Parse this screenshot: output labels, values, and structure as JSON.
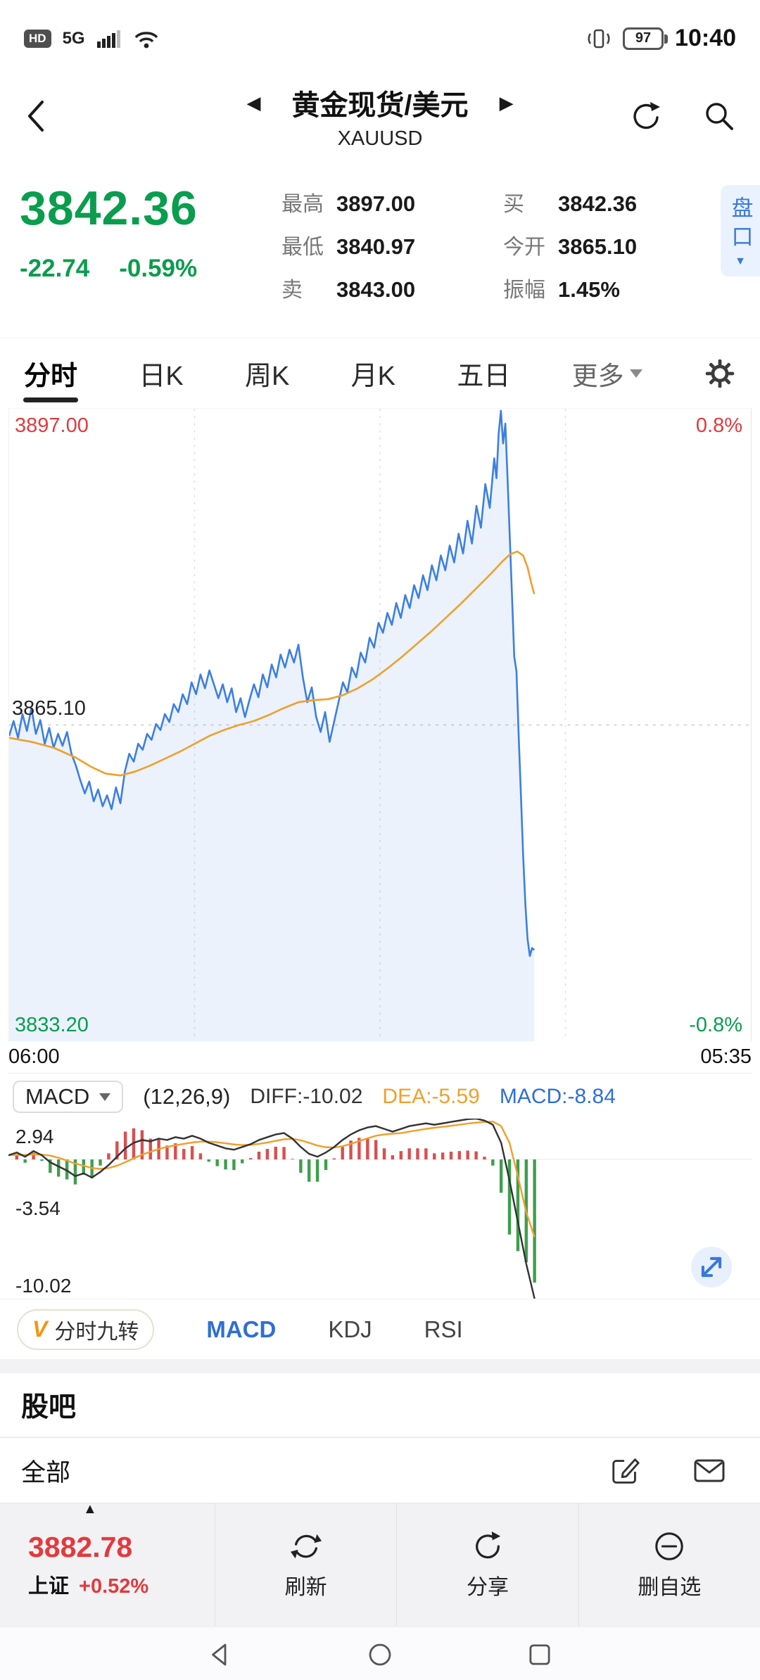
{
  "status_bar": {
    "carrier_badge": "HD",
    "network": "5G",
    "battery_level": "97",
    "time": "10:40"
  },
  "header": {
    "title": "黄金现货/美元",
    "symbol": "XAUUSD"
  },
  "quote": {
    "price": "3842.36",
    "change": "-22.74",
    "change_pct": "-0.59%",
    "stats_left": [
      {
        "label": "最高",
        "value": "3897.00"
      },
      {
        "label": "最低",
        "value": "3840.97"
      },
      {
        "label": "卖",
        "value": "3843.00"
      }
    ],
    "stats_right": [
      {
        "label": "买",
        "value": "3842.36"
      },
      {
        "label": "今开",
        "value": "3865.10"
      },
      {
        "label": "振幅",
        "value": "1.45%"
      }
    ],
    "depth_button": "盘口"
  },
  "tabs": {
    "items": [
      "分时",
      "日K",
      "周K",
      "月K",
      "五日"
    ],
    "more_label": "更多",
    "active": "分时"
  },
  "chart_data": [
    {
      "type": "line",
      "name": "分时走势",
      "symbol": "XAUUSD",
      "ylim": [
        3833.2,
        3897.0
      ],
      "baseline": 3865.1,
      "x_axis": {
        "start": "06:00",
        "end": "05:35"
      },
      "axis_labels": {
        "high": "3897.00",
        "high_pct": "0.8%",
        "mid": "3865.10",
        "low": "3833.20",
        "low_pct": "-0.8%"
      },
      "grid": {
        "v_lines_pct": [
          25,
          50,
          75
        ],
        "h_line_value": 3865.1
      },
      "series": [
        {
          "name": "price",
          "color": "#3d7fe0",
          "area_fill": "rgba(61,127,224,0.10)",
          "points": [
            [
              0,
              3864
            ],
            [
              0.6,
              3865.5
            ],
            [
              1.2,
              3863.8
            ],
            [
              1.8,
              3866.2
            ],
            [
              2.4,
              3864.5
            ],
            [
              3,
              3866.8
            ],
            [
              3.6,
              3864.2
            ],
            [
              4.2,
              3865.6
            ],
            [
              4.8,
              3863.2
            ],
            [
              5.4,
              3864.8
            ],
            [
              6,
              3862.8
            ],
            [
              6.6,
              3864.2
            ],
            [
              7.2,
              3863
            ],
            [
              7.8,
              3864.4
            ],
            [
              8.4,
              3862.2
            ],
            [
              9,
              3861
            ],
            [
              9.6,
              3859.5
            ],
            [
              10.2,
              3858.2
            ],
            [
              10.8,
              3859.4
            ],
            [
              11.4,
              3857.4
            ],
            [
              12,
              3858.6
            ],
            [
              12.6,
              3856.9
            ],
            [
              13.2,
              3858
            ],
            [
              13.8,
              3856.6
            ],
            [
              14.4,
              3858.8
            ],
            [
              15,
              3857.2
            ],
            [
              15.6,
              3860.4
            ],
            [
              16.2,
              3862.2
            ],
            [
              16.8,
              3861.4
            ],
            [
              17.4,
              3863.2
            ],
            [
              18,
              3862.6
            ],
            [
              18.6,
              3864.2
            ],
            [
              19.2,
              3863.6
            ],
            [
              19.8,
              3865.2
            ],
            [
              20.4,
              3864.6
            ],
            [
              21,
              3866.2
            ],
            [
              21.6,
              3865.4
            ],
            [
              22.2,
              3867.2
            ],
            [
              22.8,
              3866.4
            ],
            [
              23.4,
              3868.2
            ],
            [
              24,
              3867.2
            ],
            [
              24.6,
              3869.4
            ],
            [
              25.2,
              3868.2
            ],
            [
              25.8,
              3870.2
            ],
            [
              26.4,
              3868.8
            ],
            [
              27,
              3870.6
            ],
            [
              27.6,
              3869.2
            ],
            [
              28.2,
              3867.8
            ],
            [
              28.8,
              3869.2
            ],
            [
              29.4,
              3867.4
            ],
            [
              30,
              3868.8
            ],
            [
              30.6,
              3866.4
            ],
            [
              31.2,
              3867.8
            ],
            [
              31.8,
              3865.9
            ],
            [
              32.4,
              3867.6
            ],
            [
              33,
              3869.2
            ],
            [
              33.6,
              3867.9
            ],
            [
              34.2,
              3870.2
            ],
            [
              34.8,
              3868.9
            ],
            [
              35.4,
              3871.2
            ],
            [
              36,
              3869.9
            ],
            [
              36.6,
              3872.2
            ],
            [
              37.2,
              3870.9
            ],
            [
              37.8,
              3872.7
            ],
            [
              38.4,
              3871.4
            ],
            [
              39,
              3873.2
            ],
            [
              39.6,
              3869.9
            ],
            [
              40.2,
              3867.4
            ],
            [
              40.8,
              3868.9
            ],
            [
              41.4,
              3865.9
            ],
            [
              42,
              3864.4
            ],
            [
              42.6,
              3866.4
            ],
            [
              43.2,
              3863.4
            ],
            [
              43.8,
              3865.4
            ],
            [
              44.4,
              3867.4
            ],
            [
              45,
              3869.4
            ],
            [
              45.6,
              3868.4
            ],
            [
              46.2,
              3870.9
            ],
            [
              46.8,
              3869.9
            ],
            [
              47.4,
              3872.4
            ],
            [
              48,
              3871.4
            ],
            [
              48.6,
              3873.9
            ],
            [
              49.2,
              3872.9
            ],
            [
              49.8,
              3875.4
            ],
            [
              50.4,
              3874.4
            ],
            [
              51,
              3876.4
            ],
            [
              51.6,
              3875.2
            ],
            [
              52.2,
              3877.4
            ],
            [
              52.8,
              3875.9
            ],
            [
              53.4,
              3878.2
            ],
            [
              54,
              3876.9
            ],
            [
              54.6,
              3879.2
            ],
            [
              55.2,
              3877.9
            ],
            [
              55.8,
              3880.2
            ],
            [
              56.4,
              3878.7
            ],
            [
              57,
              3881.2
            ],
            [
              57.6,
              3879.7
            ],
            [
              58.2,
              3882.2
            ],
            [
              58.8,
              3880.7
            ],
            [
              59.4,
              3883.2
            ],
            [
              60,
              3881.5
            ],
            [
              60.6,
              3884.4
            ],
            [
              61.2,
              3882.4
            ],
            [
              61.8,
              3885.7
            ],
            [
              62.4,
              3883.4
            ],
            [
              63,
              3887.2
            ],
            [
              63.6,
              3885
            ],
            [
              64.2,
              3889.4
            ],
            [
              64.8,
              3887
            ],
            [
              65.4,
              3892
            ],
            [
              65.7,
              3890
            ],
            [
              66,
              3894.5
            ],
            [
              66.3,
              3896.8
            ],
            [
              66.6,
              3893.5
            ],
            [
              66.9,
              3895.5
            ],
            [
              67.2,
              3890
            ],
            [
              67.5,
              3884
            ],
            [
              67.8,
              3878
            ],
            [
              68.1,
              3872
            ],
            [
              68.4,
              3870.5
            ],
            [
              68.7,
              3864
            ],
            [
              69,
              3858
            ],
            [
              69.3,
              3852
            ],
            [
              69.6,
              3847
            ],
            [
              69.9,
              3843.5
            ],
            [
              70.2,
              3841.8
            ],
            [
              70.5,
              3842.6
            ],
            [
              70.8,
              3842.4
            ]
          ]
        },
        {
          "name": "average",
          "color": "#f0a02c",
          "points": [
            [
              0,
              3863.8
            ],
            [
              3,
              3863.4
            ],
            [
              6,
              3862.8
            ],
            [
              9,
              3861.8
            ],
            [
              11,
              3860.9
            ],
            [
              13,
              3860.2
            ],
            [
              15,
              3860
            ],
            [
              17,
              3860.4
            ],
            [
              19,
              3861
            ],
            [
              21,
              3861.7
            ],
            [
              23,
              3862.4
            ],
            [
              25,
              3863.2
            ],
            [
              27,
              3864
            ],
            [
              29,
              3864.6
            ],
            [
              31,
              3865.1
            ],
            [
              33,
              3865.5
            ],
            [
              35,
              3866.1
            ],
            [
              37,
              3866.8
            ],
            [
              39,
              3867.4
            ],
            [
              41,
              3867.6
            ],
            [
              43,
              3867.7
            ],
            [
              45,
              3868.1
            ],
            [
              47,
              3868.8
            ],
            [
              49,
              3869.7
            ],
            [
              51,
              3870.8
            ],
            [
              53,
              3872
            ],
            [
              55,
              3873.3
            ],
            [
              57,
              3874.6
            ],
            [
              59,
              3876
            ],
            [
              61,
              3877.4
            ],
            [
              63,
              3878.9
            ],
            [
              65,
              3880.4
            ],
            [
              66.5,
              3881.6
            ],
            [
              67.5,
              3882.3
            ],
            [
              68.5,
              3882.6
            ],
            [
              69.3,
              3882.2
            ],
            [
              69.9,
              3881
            ],
            [
              70.4,
              3879.4
            ],
            [
              70.8,
              3878.3
            ]
          ]
        }
      ]
    },
    {
      "type": "macd",
      "name": "MACD",
      "params": "(12,26,9)",
      "readings": {
        "diff": "DIFF:-10.02",
        "dea": "DEA:-5.59",
        "macd": "MACD:-8.84"
      },
      "ylim": [
        -10.02,
        2.94
      ],
      "axis_labels": {
        "max": "2.94",
        "mid": "-3.54",
        "min": "-10.02"
      },
      "x_end_pct": 70.8,
      "hist_colors": {
        "positive": "#d94f4f",
        "negative": "#3f9e4d"
      },
      "dif_color": "#333333",
      "dea_color": "#f0a02c",
      "dif": [
        0.3,
        0.5,
        0.2,
        0.6,
        0.3,
        -0.2,
        -0.5,
        -0.8,
        -1.2,
        -1,
        -1.3,
        -0.9,
        -0.4,
        0.2,
        0.8,
        1.2,
        1.4,
        1.3,
        1.5,
        1.4,
        1.6,
        1.5,
        1.7,
        1.5,
        1.2,
        1,
        0.8,
        0.7,
        0.9,
        1.1,
        1.4,
        1.6,
        1.8,
        1.9,
        1.5,
        0.9,
        0.4,
        0.2,
        0.5,
        0.9,
        1.4,
        1.8,
        2.1,
        2.3,
        2.4,
        2.2,
        2,
        2.2,
        2.4,
        2.5,
        2.6,
        2.5,
        2.6,
        2.7,
        2.8,
        2.9,
        2.94,
        2.8,
        2.5,
        1.2,
        -1.5,
        -4.5,
        -7.5,
        -10.02
      ],
      "dea": [
        0.3,
        0.33,
        0.32,
        0.36,
        0.35,
        0.28,
        0.12,
        -0.08,
        -0.3,
        -0.45,
        -0.62,
        -0.68,
        -0.62,
        -0.45,
        -0.2,
        0.08,
        0.35,
        0.55,
        0.75,
        0.9,
        1.02,
        1.12,
        1.22,
        1.28,
        1.28,
        1.24,
        1.16,
        1.08,
        1.04,
        1.05,
        1.12,
        1.22,
        1.34,
        1.45,
        1.48,
        1.38,
        1.2,
        1,
        0.88,
        0.86,
        0.95,
        1.12,
        1.32,
        1.52,
        1.7,
        1.8,
        1.85,
        1.9,
        2,
        2.1,
        2.2,
        2.28,
        2.35,
        2.42,
        2.5,
        2.58,
        2.65,
        2.7,
        2.72,
        2.4,
        1.2,
        -1.2,
        -3.8,
        -5.59
      ]
    }
  ],
  "indicator_tabs": {
    "special": "分时九转",
    "special_icon": "V",
    "items": [
      "MACD",
      "KDJ",
      "RSI"
    ],
    "active": "MACD"
  },
  "forum": {
    "title": "股吧",
    "filter_label": "全部"
  },
  "bottom_bar": {
    "index_price": "3882.78",
    "index_name": "上证",
    "index_change_pct": "+0.52%",
    "refresh_label": "刷新",
    "share_label": "分享",
    "remove_label": "删自选"
  },
  "colors": {
    "up": "#e23a3e",
    "down": "#0a9d4e",
    "accent": "#3b79d8",
    "orange": "#f0a02c"
  }
}
